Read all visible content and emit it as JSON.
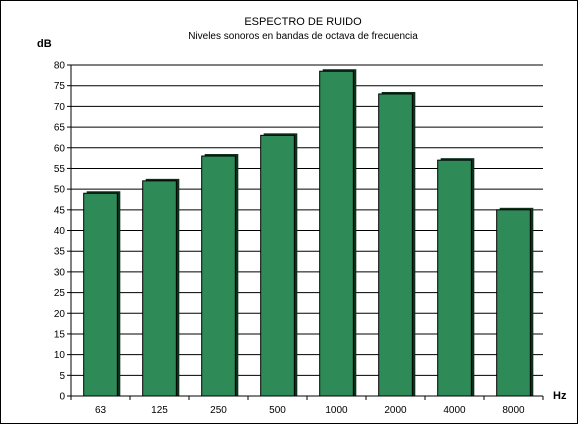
{
  "chart_data": {
    "type": "bar",
    "title": "ESPECTRO DE RUIDO",
    "subtitle": "Niveles sonoros en bandas de octava de frecuencia",
    "xlabel": "Hz",
    "ylabel": "dB",
    "categories": [
      "63",
      "125",
      "250",
      "500",
      "1000",
      "2000",
      "4000",
      "8000"
    ],
    "values": [
      49,
      52,
      58,
      63,
      78.5,
      73,
      57,
      45
    ],
    "ylim": [
      0,
      80
    ],
    "yticks": [
      "0",
      "5",
      "10",
      "15",
      "20",
      "25",
      "30",
      "35",
      "40",
      "45",
      "50",
      "55",
      "60",
      "65",
      "70",
      "75",
      "80"
    ],
    "grid": true,
    "legend": "none",
    "colors": {
      "bar": "#2e8b57",
      "bar_shadow": "#0d2f1c",
      "grid": "#000000"
    }
  }
}
